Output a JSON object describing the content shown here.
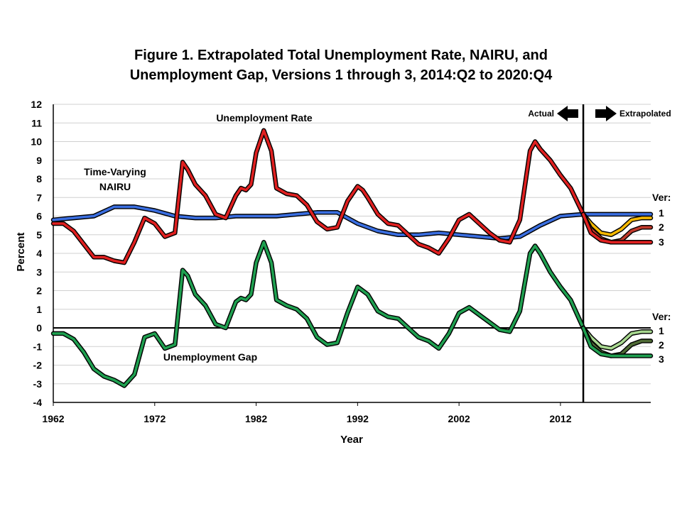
{
  "chart_data": {
    "type": "line",
    "title_line1": "Figure 1. Extrapolated Total Unemployment Rate, NAIRU, and",
    "title_line2": "Unemployment Gap, Versions 1 through 3, 2014:Q2 to 2020:Q4",
    "xlabel": "Year",
    "ylabel": "Percent",
    "xlim": [
      1962,
      2020.9
    ],
    "ylim": [
      -4,
      12
    ],
    "yticks": [
      -4,
      -3,
      -2,
      -1,
      0,
      1,
      2,
      3,
      4,
      5,
      6,
      7,
      8,
      9,
      10,
      11,
      12
    ],
    "xticks": [
      1962,
      1972,
      1982,
      1992,
      2002,
      2012
    ],
    "grid": "horizontal",
    "divider_x": 2014.25,
    "labels": {
      "unemployment_rate": "Unemployment Rate",
      "nairu_line1": "Time-Varying",
      "nairu_line2": "NAIRU",
      "unemployment_gap": "Unemployment Gap",
      "actual": "Actual",
      "extrapolated": "Extrapolated",
      "ver_upper": "Ver:",
      "ver_lower": "Ver:",
      "version_numbers": [
        "1",
        "2",
        "3"
      ]
    },
    "colors": {
      "unemployment_rate": "#e02020",
      "nairu": "#3a6ee0",
      "unemployment_gap": "#1fa050",
      "ur_v1": "#f5b800",
      "ur_v2": "#c0392b",
      "ur_v3": "#e02020",
      "gap_v1": "#a8d890",
      "gap_v2": "#4f6b35",
      "gap_v3": "#1fa050"
    },
    "series": [
      {
        "id": "unemployment_rate",
        "name": "Unemployment Rate",
        "x": [
          1962,
          1963,
          1964,
          1965,
          1966,
          1967,
          1968,
          1969,
          1970,
          1971,
          1972,
          1973,
          1974,
          1974.75,
          1975.25,
          1976,
          1977,
          1978,
          1979,
          1980,
          1980.5,
          1981,
          1981.5,
          1982,
          1982.75,
          1983.5,
          1984,
          1985,
          1986,
          1987,
          1988,
          1989,
          1990,
          1991,
          1992,
          1992.5,
          1993,
          1994,
          1995,
          1996,
          1997,
          1998,
          1999,
          2000,
          2001,
          2002,
          2003,
          2004,
          2005,
          2006,
          2007,
          2008,
          2009,
          2009.5,
          2010,
          2011,
          2012,
          2013,
          2014.25
        ],
        "y": [
          5.6,
          5.6,
          5.2,
          4.5,
          3.8,
          3.8,
          3.6,
          3.5,
          4.6,
          5.9,
          5.6,
          4.9,
          5.1,
          8.9,
          8.5,
          7.7,
          7.1,
          6.1,
          5.9,
          7.1,
          7.5,
          7.4,
          7.7,
          9.4,
          10.6,
          9.5,
          7.5,
          7.2,
          7.1,
          6.6,
          5.7,
          5.3,
          5.4,
          6.8,
          7.6,
          7.4,
          7.0,
          6.1,
          5.6,
          5.5,
          5.0,
          4.5,
          4.3,
          4.0,
          4.8,
          5.8,
          6.1,
          5.6,
          5.1,
          4.7,
          4.6,
          5.8,
          9.5,
          10.0,
          9.6,
          9.0,
          8.2,
          7.5,
          6.1
        ]
      },
      {
        "id": "nairu",
        "name": "Time-Varying NAIRU",
        "x": [
          1962,
          1964,
          1966,
          1968,
          1970,
          1972,
          1974,
          1976,
          1978,
          1980,
          1982,
          1984,
          1986,
          1988,
          1990,
          1992,
          1994,
          1996,
          1998,
          2000,
          2002,
          2004,
          2006,
          2008,
          2010,
          2012,
          2014.25,
          2020.9
        ],
        "y": [
          5.8,
          5.9,
          6.0,
          6.5,
          6.5,
          6.3,
          6.0,
          5.9,
          5.9,
          6.0,
          6.0,
          6.0,
          6.1,
          6.2,
          6.2,
          5.6,
          5.2,
          5.0,
          5.0,
          5.1,
          5.0,
          4.9,
          4.8,
          4.9,
          5.5,
          6.0,
          6.1,
          6.1
        ]
      },
      {
        "id": "unemployment_gap",
        "name": "Unemployment Gap",
        "x": [
          1962,
          1963,
          1964,
          1965,
          1966,
          1967,
          1968,
          1969,
          1970,
          1971,
          1972,
          1973,
          1974,
          1974.75,
          1975.25,
          1976,
          1977,
          1978,
          1979,
          1980,
          1980.5,
          1981,
          1981.5,
          1982,
          1982.75,
          1983.5,
          1984,
          1985,
          1986,
          1987,
          1988,
          1989,
          1990,
          1991,
          1992,
          1992.5,
          1993,
          1994,
          1995,
          1996,
          1997,
          1998,
          1999,
          2000,
          2001,
          2002,
          2003,
          2004,
          2005,
          2006,
          2007,
          2008,
          2009,
          2009.5,
          2010,
          2011,
          2012,
          2013,
          2014.25
        ],
        "y": [
          -0.3,
          -0.3,
          -0.6,
          -1.3,
          -2.2,
          -2.6,
          -2.8,
          -3.1,
          -2.5,
          -0.5,
          -0.3,
          -1.1,
          -0.9,
          3.1,
          2.8,
          1.8,
          1.2,
          0.2,
          0.0,
          1.4,
          1.6,
          1.5,
          1.8,
          3.5,
          4.6,
          3.5,
          1.5,
          1.2,
          1.0,
          0.5,
          -0.5,
          -0.9,
          -0.8,
          0.8,
          2.2,
          2.0,
          1.8,
          0.9,
          0.6,
          0.5,
          0.0,
          -0.5,
          -0.7,
          -1.1,
          -0.3,
          0.8,
          1.1,
          0.7,
          0.3,
          -0.1,
          -0.2,
          0.9,
          4.0,
          4.4,
          4.0,
          3.0,
          2.2,
          1.5,
          0.0
        ]
      },
      {
        "id": "ur_v1",
        "name": "1",
        "x": [
          2014.25,
          2015,
          2016,
          2017,
          2018,
          2019,
          2020,
          2020.9
        ],
        "y": [
          6.1,
          5.6,
          5.1,
          5.0,
          5.3,
          5.8,
          5.9,
          5.9
        ]
      },
      {
        "id": "ur_v2",
        "name": "2",
        "x": [
          2014.25,
          2015,
          2016,
          2017,
          2018,
          2019,
          2020,
          2020.9
        ],
        "y": [
          6.1,
          5.3,
          4.8,
          4.6,
          4.7,
          5.2,
          5.4,
          5.4
        ]
      },
      {
        "id": "ur_v3",
        "name": "3",
        "x": [
          2014.25,
          2015,
          2016,
          2017,
          2018,
          2019,
          2020,
          2020.9
        ],
        "y": [
          6.1,
          5.1,
          4.7,
          4.6,
          4.6,
          4.6,
          4.6,
          4.6
        ]
      },
      {
        "id": "gap_v1",
        "name": "1",
        "x": [
          2014.25,
          2015,
          2016,
          2017,
          2018,
          2019,
          2020,
          2020.9
        ],
        "y": [
          0.0,
          -0.5,
          -1.0,
          -1.1,
          -0.8,
          -0.3,
          -0.2,
          -0.2
        ]
      },
      {
        "id": "gap_v2",
        "name": "2",
        "x": [
          2014.25,
          2015,
          2016,
          2017,
          2018,
          2019,
          2020,
          2020.9
        ],
        "y": [
          0.0,
          -0.8,
          -1.3,
          -1.5,
          -1.4,
          -0.9,
          -0.7,
          -0.7
        ]
      },
      {
        "id": "gap_v3",
        "name": "3",
        "x": [
          2014.25,
          2015,
          2016,
          2017,
          2018,
          2019,
          2020,
          2020.9
        ],
        "y": [
          0.0,
          -1.0,
          -1.4,
          -1.5,
          -1.5,
          -1.5,
          -1.5,
          -1.5
        ]
      }
    ]
  }
}
